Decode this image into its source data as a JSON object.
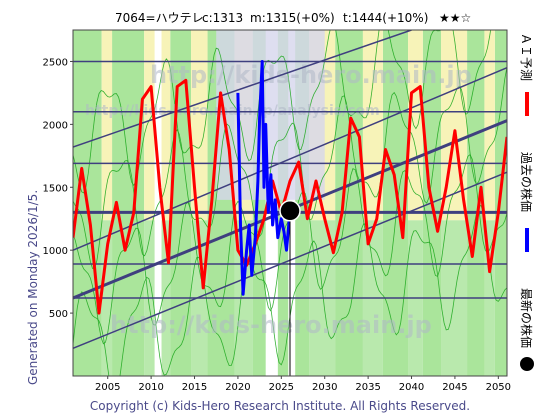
{
  "header": {
    "ticker": "7064=ハウテレ",
    "close": "c:1313",
    "mean": "m:1315(+0%)",
    "target": "t:1444(+10%)",
    "stars": "★★☆"
  },
  "side_label": "Generated on Monday 2026/1/5.",
  "copyright": "Copyright (c) Kids-Hero Research Institute. All Rights Reserved.",
  "watermarks": [
    "http://kids-hero.main.jp",
    "http://kids-hero.main.jp/analysis/com",
    "http://kids-hero.main.jp"
  ],
  "legend": [
    {
      "label": "ＡＩ予測",
      "color": "#ff0000"
    },
    {
      "label": "過去の株価",
      "color": "#0000ff"
    },
    {
      "label": "最新の株価",
      "color": "#000000"
    }
  ],
  "colors": {
    "band_green": "#9be08a",
    "band_yellow": "#f7f3b8",
    "band_purple": "#d6d6ec",
    "grid_line": "#3f3f7f",
    "channel_line": "#3f3f7f",
    "thin_green": "#22aa22"
  },
  "chart_data": {
    "type": "line",
    "title": "",
    "xlabel": "",
    "ylabel": "",
    "xlim": [
      2001,
      2051
    ],
    "ylim": [
      0,
      2750
    ],
    "x_ticks": [
      2005,
      2010,
      2015,
      2020,
      2025,
      2030,
      2035,
      2040,
      2045,
      2050
    ],
    "y_ticks": [
      500,
      1000,
      1500,
      2000,
      2500
    ],
    "horizontal_levels": [
      620,
      890,
      1300,
      1690,
      2100,
      2500
    ],
    "current_point": {
      "x": 2026,
      "y": 1313
    },
    "channel_lines": [
      {
        "x0": 2001,
        "y0": 220,
        "x1": 2051,
        "y1": 1620
      },
      {
        "x0": 2001,
        "y0": 620,
        "x1": 2051,
        "y1": 2030
      },
      {
        "x0": 2001,
        "y0": 1000,
        "x1": 2051,
        "y1": 2450
      },
      {
        "x0": 2001,
        "y0": 1820,
        "x1": 2040,
        "y1": 2750
      }
    ],
    "series": [
      {
        "name": "ＡＩ予測",
        "color": "#ff0000",
        "x": [
          2001,
          2002,
          2003,
          2004,
          2005,
          2006,
          2007,
          2008,
          2009,
          2010,
          2011,
          2012,
          2013,
          2014,
          2015,
          2016,
          2017,
          2018,
          2019,
          2020,
          2021,
          2022,
          2023,
          2024,
          2025,
          2026,
          2027,
          2028,
          2029,
          2030,
          2031,
          2032,
          2033,
          2034,
          2035,
          2036,
          2037,
          2038,
          2039,
          2040,
          2041,
          2042,
          2043,
          2044,
          2045,
          2046,
          2047,
          2048,
          2049,
          2050,
          2051
        ],
        "y": [
          1100,
          1650,
          1200,
          500,
          1050,
          1380,
          1000,
          1300,
          2200,
          2300,
          1500,
          900,
          2300,
          2350,
          1500,
          700,
          1400,
          2250,
          1800,
          1000,
          880,
          1050,
          1250,
          1550,
          1300,
          1550,
          1700,
          1250,
          1550,
          1250,
          980,
          1300,
          2050,
          1900,
          1050,
          1250,
          1800,
          1600,
          1100,
          2250,
          2300,
          1500,
          1150,
          1500,
          1950,
          1400,
          950,
          1500,
          830,
          1300,
          1900
        ]
      },
      {
        "name": "過去の株価",
        "color": "#0000ff",
        "x": [
          2020.0,
          2020.3,
          2020.6,
          2021.0,
          2021.3,
          2021.6,
          2022.0,
          2022.3,
          2022.5,
          2022.8,
          2023.0,
          2023.2,
          2023.5,
          2023.8,
          2024.0,
          2024.3,
          2024.6,
          2025.0,
          2025.3,
          2025.6,
          2026.0
        ],
        "y": [
          2250,
          1200,
          650,
          1000,
          1200,
          800,
          1100,
          1550,
          2050,
          2500,
          1500,
          2000,
          1300,
          1600,
          1200,
          1400,
          1100,
          1250,
          1150,
          1000,
          1313
        ]
      }
    ]
  }
}
